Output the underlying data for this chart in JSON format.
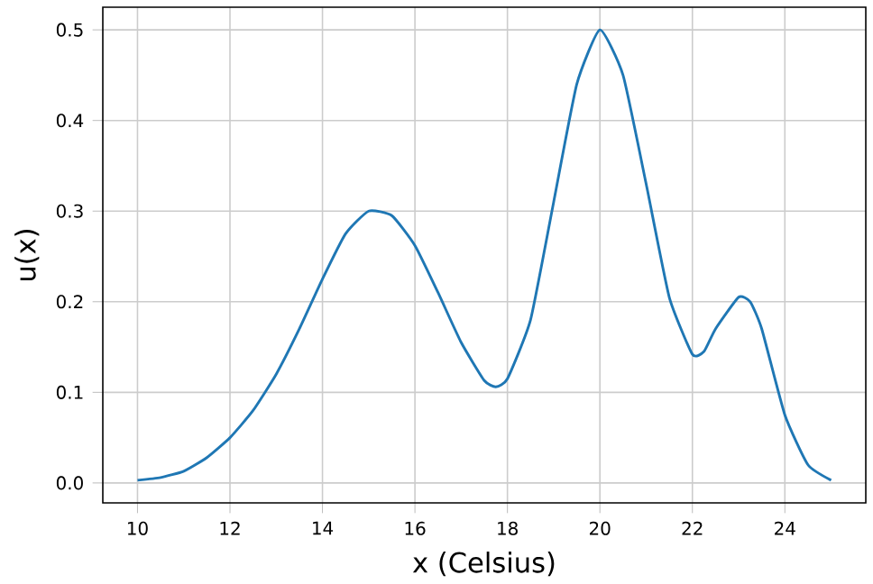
{
  "chart_data": {
    "type": "line",
    "xlabel": "x (Celsius)",
    "ylabel": "u(x)",
    "series": [
      {
        "color": "#1f77b4",
        "x": [
          10,
          10.5,
          11,
          11.5,
          12,
          12.5,
          13,
          13.5,
          14,
          14.5,
          15,
          15.5,
          16,
          16.5,
          17,
          17.5,
          17.75,
          18,
          18.5,
          19,
          19.5,
          20,
          20.5,
          21,
          21.5,
          22,
          22.25,
          22.5,
          23,
          23.25,
          23.5,
          24,
          24.5,
          25
        ],
        "values": [
          0.003,
          0.006,
          0.013,
          0.028,
          0.05,
          0.08,
          0.12,
          0.17,
          0.225,
          0.275,
          0.3,
          0.295,
          0.262,
          0.21,
          0.155,
          0.113,
          0.106,
          0.115,
          0.18,
          0.31,
          0.44,
          0.5,
          0.45,
          0.33,
          0.205,
          0.142,
          0.145,
          0.17,
          0.205,
          0.2,
          0.17,
          0.075,
          0.02,
          0.003
        ]
      }
    ],
    "xlim": [
      9.25,
      25.75
    ],
    "ylim": [
      -0.022,
      0.525
    ],
    "xticks": [
      10,
      12,
      14,
      16,
      18,
      20,
      22,
      24
    ],
    "yticks": [
      {
        "value": 0.0,
        "label": "0.0"
      },
      0.1,
      0.2,
      0.3,
      0.4,
      0.5
    ],
    "grid": true,
    "marker": "none",
    "line_style": "solid"
  }
}
